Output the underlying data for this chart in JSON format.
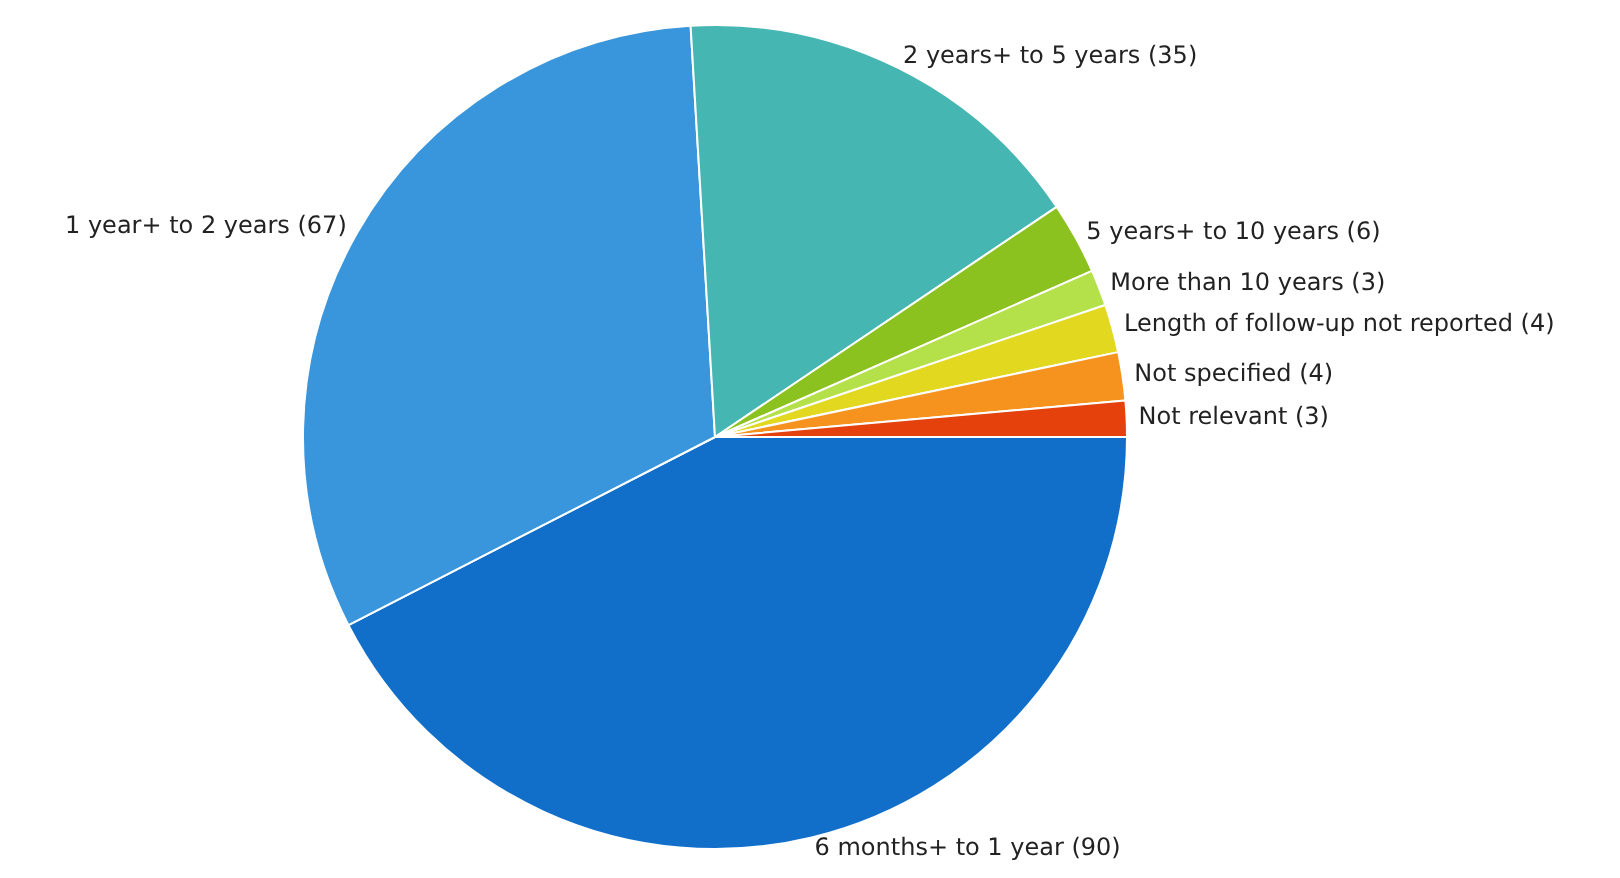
{
  "chart_data": {
    "type": "pie",
    "categories": [
      "6 months+ to 1 year (90)",
      "1 year+ to 2 years (67)",
      "2 years+ to 5 years (35)",
      "5 years+ to 10 years (6)",
      "More than 10 years (3)",
      "Length of follow-up not reported (4)",
      "Not specified (4)",
      "Not relevant (3)"
    ],
    "values": [
      90,
      67,
      35,
      6,
      3,
      4,
      4,
      3
    ],
    "colors": [
      "#116fca",
      "#3995dc",
      "#46b6b3",
      "#8cc21f",
      "#b4e04a",
      "#e1d81f",
      "#f6931e",
      "#e4410d"
    ],
    "legend": false
  }
}
